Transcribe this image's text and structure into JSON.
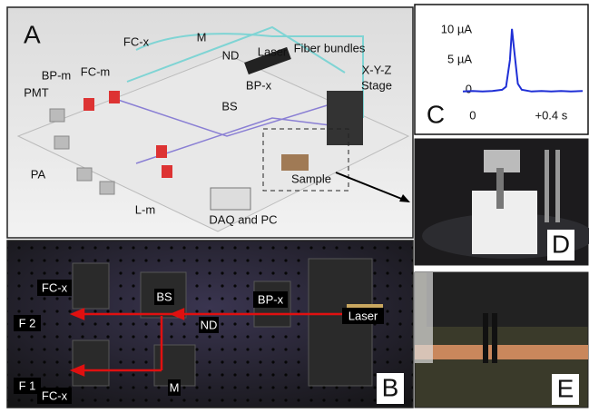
{
  "panel_a": {
    "letter": "A",
    "labels": [
      "PMT",
      "BP-m",
      "FC-m",
      "FC-x",
      "M",
      "ND",
      "Laser",
      "Fiber bundles",
      "X-Y-Z",
      "Stage",
      "BP-x",
      "BS",
      "PA",
      "L-m",
      "Sample",
      "DAQ and PC"
    ]
  },
  "panel_b": {
    "letter": "B",
    "labels": [
      "FC-x",
      "BS",
      "BP-x",
      "F 2",
      "ND",
      "Laser",
      "F 1",
      "M",
      "FC-x"
    ]
  },
  "panel_d": {
    "letter": "D"
  },
  "panel_e": {
    "letter": "E"
  },
  "chart_data": {
    "type": "line",
    "letter": "C",
    "color": "#1f2fd6",
    "x": [
      -0.05,
      0,
      0.05,
      0.1,
      0.15,
      0.17,
      0.19,
      0.2,
      0.21,
      0.23,
      0.25,
      0.3,
      0.35,
      0.4,
      0.45,
      0.5,
      0.56
    ],
    "values": [
      -0.3,
      -0.2,
      -0.3,
      -0.2,
      0,
      0.5,
      5,
      10.2,
      7,
      1,
      0,
      -0.3,
      -0.2,
      -0.3,
      -0.2,
      -0.3,
      -0.2
    ],
    "xlim": [
      -0.05,
      0.56
    ],
    "ylim": [
      -2,
      12
    ],
    "xticks": [
      0,
      {
        "value": 0.4,
        "label": "+0.4 s"
      }
    ],
    "yticks": [
      {
        "value": 10,
        "label": "10 µA"
      },
      {
        "value": 5,
        "label": "5 µA"
      },
      0
    ]
  }
}
